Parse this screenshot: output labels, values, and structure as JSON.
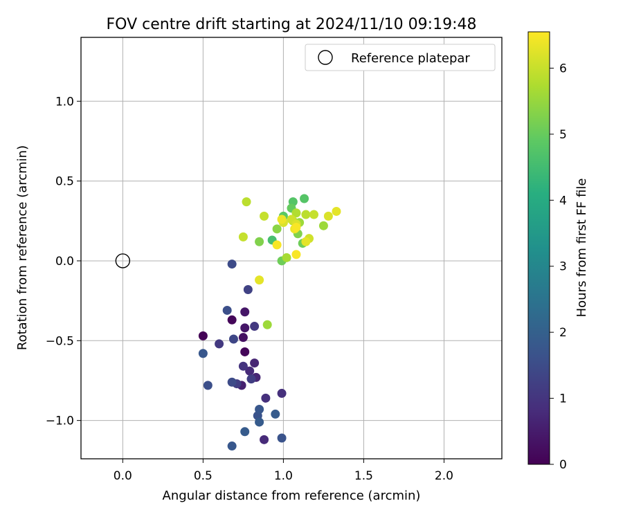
{
  "chart_data": {
    "type": "scatter",
    "title": "FOV centre drift starting at 2024/11/10 09:19:48",
    "xlabel": "Angular distance from reference (arcmin)",
    "ylabel": "Rotation from reference (arcmin)",
    "xlim": [
      -0.26,
      2.36
    ],
    "ylim": [
      -1.24,
      1.4
    ],
    "xticks": [
      0.0,
      0.5,
      1.0,
      1.5,
      2.0
    ],
    "xtick_labels": [
      "0.0",
      "0.5",
      "1.0",
      "1.5",
      "2.0"
    ],
    "yticks": [
      -1.0,
      -0.5,
      0.0,
      0.5,
      1.0
    ],
    "ytick_labels": [
      "−1.0",
      "−0.5",
      "0.0",
      "0.5",
      "1.0"
    ],
    "grid": true,
    "legend": {
      "position": "top-right",
      "entries": [
        "Reference platepar"
      ]
    },
    "reference_point": {
      "x": 0.0,
      "y": 0.0,
      "label": "Reference platepar",
      "marker": "open-circle"
    },
    "colorbar": {
      "label": "Hours from first FF file",
      "range": [
        0,
        6.55
      ],
      "ticks": [
        0,
        1,
        2,
        3,
        4,
        5,
        6
      ],
      "colormap": "viridis"
    },
    "points": [
      {
        "x": 0.5,
        "y": -0.47,
        "c": 0.05
      },
      {
        "x": 0.68,
        "y": -0.37,
        "c": 0.1
      },
      {
        "x": 0.76,
        "y": -0.57,
        "c": 0.1
      },
      {
        "x": 0.75,
        "y": -0.48,
        "c": 0.3
      },
      {
        "x": 0.76,
        "y": -0.32,
        "c": 0.4
      },
      {
        "x": 0.76,
        "y": -0.42,
        "c": 0.4
      },
      {
        "x": 0.74,
        "y": -0.78,
        "c": 0.6
      },
      {
        "x": 0.82,
        "y": -0.64,
        "c": 0.7
      },
      {
        "x": 0.83,
        "y": -0.73,
        "c": 0.7
      },
      {
        "x": 0.79,
        "y": -0.69,
        "c": 0.8
      },
      {
        "x": 0.88,
        "y": -1.12,
        "c": 0.8
      },
      {
        "x": 0.89,
        "y": -0.86,
        "c": 0.9
      },
      {
        "x": 0.99,
        "y": -0.83,
        "c": 0.9
      },
      {
        "x": 0.75,
        "y": -0.66,
        "c": 1.0
      },
      {
        "x": 0.82,
        "y": -0.41,
        "c": 1.1
      },
      {
        "x": 0.6,
        "y": -0.52,
        "c": 1.1
      },
      {
        "x": 0.8,
        "y": -0.74,
        "c": 1.2
      },
      {
        "x": 0.71,
        "y": -0.77,
        "c": 1.2
      },
      {
        "x": 0.69,
        "y": -0.49,
        "c": 1.4
      },
      {
        "x": 0.78,
        "y": -0.18,
        "c": 1.3
      },
      {
        "x": 0.68,
        "y": -0.02,
        "c": 1.5
      },
      {
        "x": 0.65,
        "y": -0.31,
        "c": 1.6
      },
      {
        "x": 0.68,
        "y": -0.76,
        "c": 1.5
      },
      {
        "x": 0.53,
        "y": -0.78,
        "c": 1.6
      },
      {
        "x": 0.5,
        "y": -0.58,
        "c": 1.8
      },
      {
        "x": 0.84,
        "y": -0.97,
        "c": 1.7
      },
      {
        "x": 0.85,
        "y": -0.93,
        "c": 1.8
      },
      {
        "x": 0.85,
        "y": -1.01,
        "c": 1.9
      },
      {
        "x": 0.95,
        "y": -0.96,
        "c": 1.9
      },
      {
        "x": 0.99,
        "y": -1.11,
        "c": 1.7
      },
      {
        "x": 0.76,
        "y": -1.07,
        "c": 1.9
      },
      {
        "x": 0.68,
        "y": -1.16,
        "c": 1.8
      },
      {
        "x": 0.93,
        "y": 0.13,
        "c": 4.6
      },
      {
        "x": 1.13,
        "y": 0.39,
        "c": 4.8
      },
      {
        "x": 1.06,
        "y": 0.37,
        "c": 4.8
      },
      {
        "x": 1.0,
        "y": 0.28,
        "c": 4.9
      },
      {
        "x": 1.05,
        "y": 0.33,
        "c": 5.0
      },
      {
        "x": 0.99,
        "y": 0.0,
        "c": 5.1
      },
      {
        "x": 1.12,
        "y": 0.11,
        "c": 5.1
      },
      {
        "x": 0.85,
        "y": 0.12,
        "c": 5.3
      },
      {
        "x": 1.09,
        "y": 0.17,
        "c": 5.3
      },
      {
        "x": 0.96,
        "y": 0.2,
        "c": 5.4
      },
      {
        "x": 1.1,
        "y": 0.24,
        "c": 5.6
      },
      {
        "x": 1.25,
        "y": 0.22,
        "c": 5.6
      },
      {
        "x": 0.9,
        "y": -0.4,
        "c": 5.6
      },
      {
        "x": 1.02,
        "y": 0.02,
        "c": 5.7
      },
      {
        "x": 1.06,
        "y": 0.25,
        "c": 5.8
      },
      {
        "x": 1.08,
        "y": 0.3,
        "c": 5.8
      },
      {
        "x": 0.77,
        "y": 0.37,
        "c": 5.9
      },
      {
        "x": 1.14,
        "y": 0.29,
        "c": 5.9
      },
      {
        "x": 0.75,
        "y": 0.15,
        "c": 6.0
      },
      {
        "x": 0.88,
        "y": 0.28,
        "c": 6.0
      },
      {
        "x": 1.19,
        "y": 0.29,
        "c": 6.0
      },
      {
        "x": 1.16,
        "y": 0.14,
        "c": 6.1
      },
      {
        "x": 1.05,
        "y": 0.26,
        "c": 6.1
      },
      {
        "x": 1.0,
        "y": 0.24,
        "c": 6.2
      },
      {
        "x": 1.08,
        "y": 0.23,
        "c": 6.2
      },
      {
        "x": 1.28,
        "y": 0.28,
        "c": 6.2
      },
      {
        "x": 1.14,
        "y": 0.12,
        "c": 6.3
      },
      {
        "x": 0.85,
        "y": -0.12,
        "c": 6.3
      },
      {
        "x": 1.33,
        "y": 0.31,
        "c": 6.3
      },
      {
        "x": 1.07,
        "y": 0.2,
        "c": 6.4
      },
      {
        "x": 0.99,
        "y": 0.26,
        "c": 6.4
      },
      {
        "x": 1.08,
        "y": 0.21,
        "c": 6.5
      },
      {
        "x": 0.96,
        "y": 0.1,
        "c": 6.5
      },
      {
        "x": 1.08,
        "y": 0.04,
        "c": 6.5
      }
    ]
  }
}
